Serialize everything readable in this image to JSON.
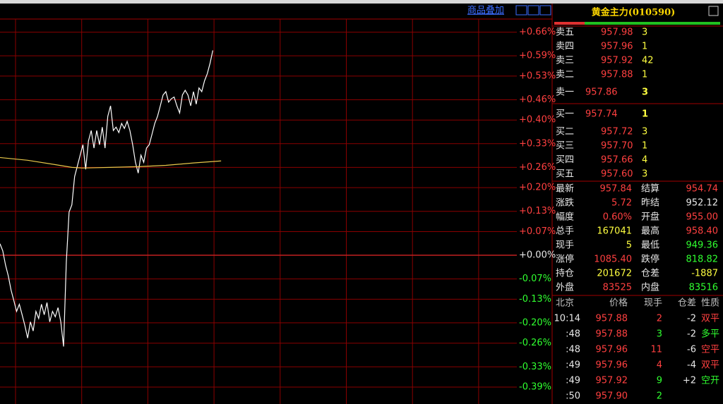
{
  "toolbar": {
    "overlay": "商品叠加"
  },
  "chart_data": {
    "type": "line",
    "ylim": [
      -0.44,
      0.73
    ],
    "xlim": [
      0,
      187
    ],
    "grid": true,
    "yticks": [
      {
        "value": 0.66,
        "label": "+0.66%"
      },
      {
        "value": 0.59,
        "label": "+0.59%"
      },
      {
        "value": 0.53,
        "label": "+0.53%"
      },
      {
        "value": 0.46,
        "label": "+0.46%"
      },
      {
        "value": 0.4,
        "label": "+0.40%"
      },
      {
        "value": 0.33,
        "label": "+0.33%"
      },
      {
        "value": 0.26,
        "label": "+0.26%"
      },
      {
        "value": 0.2,
        "label": "+0.20%"
      },
      {
        "value": 0.13,
        "label": "+0.13%"
      },
      {
        "value": 0.07,
        "label": "+0.07%"
      },
      {
        "value": 0,
        "label": "+0.00%"
      },
      {
        "value": -0.07,
        "label": "-0.07%"
      },
      {
        "value": -0.13,
        "label": "-0.13%"
      },
      {
        "value": -0.2,
        "label": "-0.20%"
      },
      {
        "value": -0.26,
        "label": "-0.26%"
      },
      {
        "value": -0.33,
        "label": "-0.33%"
      },
      {
        "value": -0.39,
        "label": "-0.39%"
      }
    ],
    "series": [
      {
        "color": "#ffffff",
        "values": [
          0.034,
          0.013,
          -0.029,
          -0.061,
          -0.103,
          -0.134,
          -0.166,
          -0.145,
          -0.176,
          -0.208,
          -0.245,
          -0.197,
          -0.224,
          -0.166,
          -0.187,
          -0.145,
          -0.176,
          -0.14,
          -0.197,
          -0.166,
          -0.182,
          -0.155,
          -0.197,
          -0.27,
          -0.019,
          0.128,
          0.149,
          0.233,
          0.264,
          0.296,
          0.327,
          0.254,
          0.338,
          0.369,
          0.317,
          0.369,
          0.327,
          0.379,
          0.317,
          0.411,
          0.442,
          0.369,
          0.379,
          0.363,
          0.39,
          0.375,
          0.396,
          0.369,
          0.327,
          0.275,
          0.243,
          0.296,
          0.275,
          0.317,
          0.327,
          0.358,
          0.39,
          0.411,
          0.442,
          0.474,
          0.484,
          0.453,
          0.463,
          0.468,
          0.442,
          0.421,
          0.474,
          0.488,
          0.474,
          0.442,
          0.484,
          0.447,
          0.495,
          0.484,
          0.516,
          0.537,
          0.568,
          0.606
        ]
      },
      {
        "color": "#e8c84a",
        "x": [
          0,
          10,
          20,
          26,
          30,
          40,
          50,
          60,
          70,
          80
        ],
        "values": [
          0.289,
          0.281,
          0.268,
          0.26,
          0.258,
          0.26,
          0.262,
          0.266,
          0.273,
          0.279
        ]
      }
    ]
  },
  "quote": {
    "title": "黄金主力(010590)",
    "asks": [
      {
        "label": "卖五",
        "price": "957.98",
        "volume": "3"
      },
      {
        "label": "卖四",
        "price": "957.96",
        "volume": "1"
      },
      {
        "label": "卖三",
        "price": "957.92",
        "volume": "42"
      },
      {
        "label": "卖二",
        "price": "957.88",
        "volume": "1"
      },
      {
        "label": "卖一",
        "price": "957.86",
        "volume": "3"
      }
    ],
    "bids": [
      {
        "label": "买一",
        "price": "957.74",
        "volume": "1"
      },
      {
        "label": "买二",
        "price": "957.72",
        "volume": "3"
      },
      {
        "label": "买三",
        "price": "957.70",
        "volume": "1"
      },
      {
        "label": "买四",
        "price": "957.66",
        "volume": "4"
      },
      {
        "label": "买五",
        "price": "957.60",
        "volume": "3"
      }
    ],
    "stats": [
      [
        "最新",
        "957.84",
        "结算",
        "954.74"
      ],
      [
        "涨跌",
        "5.72",
        "昨结",
        "952.12"
      ],
      [
        "幅度",
        "0.60%",
        "开盘",
        "955.00"
      ],
      [
        "总手",
        "167041",
        "最高",
        "958.40"
      ],
      [
        "现手",
        "5",
        "最低",
        "949.36"
      ],
      [
        "涨停",
        "1085.40",
        "跌停",
        "818.82"
      ],
      [
        "持仓",
        "201672",
        "仓差",
        "-1887"
      ],
      [
        "外盘",
        "83525",
        "内盘",
        "83516"
      ]
    ]
  },
  "ticks": {
    "header": [
      "北京",
      "价格",
      "现手",
      "仓差",
      "性质"
    ],
    "rows": [
      [
        "10:14",
        "957.88",
        "2",
        "-2",
        "双平"
      ],
      [
        ":48",
        "957.88",
        "3",
        "-2",
        "多平"
      ],
      [
        ":48",
        "957.96",
        "11",
        "-6",
        "空平"
      ],
      [
        ":49",
        "957.96",
        "4",
        "-4",
        "双平"
      ],
      [
        ":49",
        "957.92",
        "9",
        "+2",
        "空开"
      ],
      [
        ":50",
        "957.90",
        "2"
      ]
    ]
  }
}
